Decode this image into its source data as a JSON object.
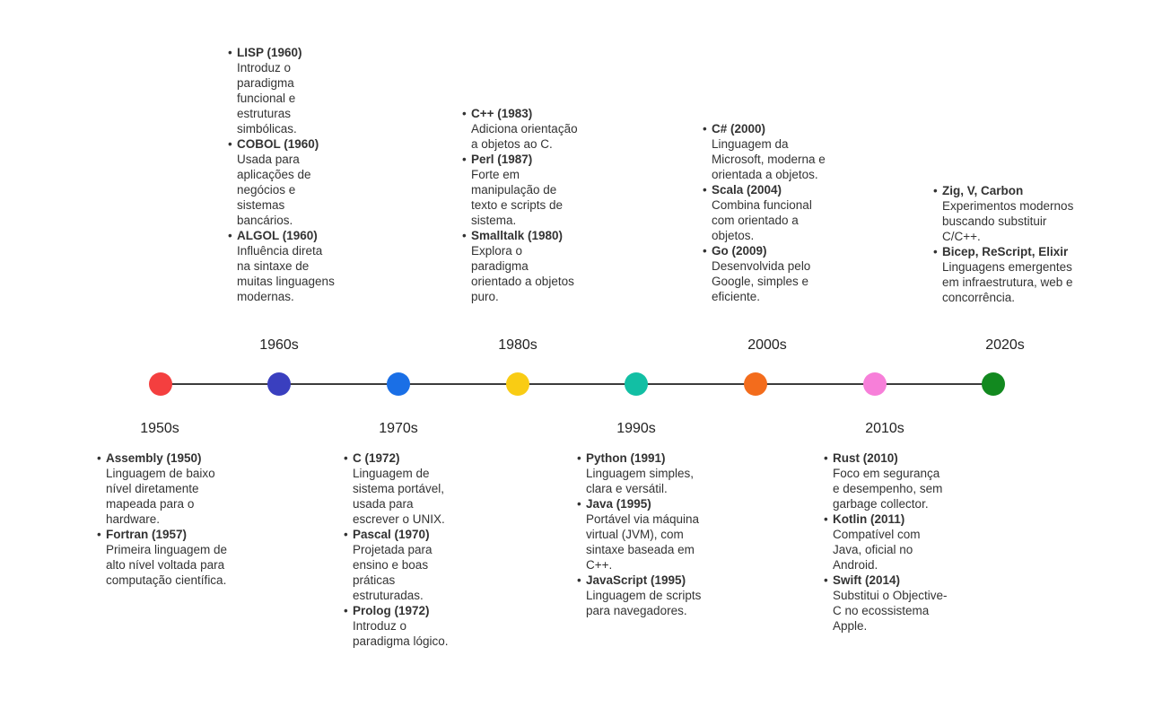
{
  "decades": [
    {
      "label": "1950s",
      "color": "#f43f3f",
      "events": [
        {
          "title": "Assembly (1950)",
          "desc": "Linguagem de baixo nível diretamente mapeada para o hardware."
        },
        {
          "title": "Fortran (1957)",
          "desc": "Primeira linguagem de alto nível voltada para computação científica."
        }
      ]
    },
    {
      "label": "1960s",
      "color": "#3a3fbf",
      "events": [
        {
          "title": "LISP (1960)",
          "desc": "Introduz o paradigma funcional e estruturas simbólicas."
        },
        {
          "title": "COBOL (1960)",
          "desc": "Usada para aplicações de negócios e sistemas bancários."
        },
        {
          "title": "ALGOL (1960)",
          "desc": "Influência direta na sintaxe de muitas linguagens modernas."
        }
      ]
    },
    {
      "label": "1970s",
      "color": "#1a6fe6",
      "events": [
        {
          "title": "C (1972)",
          "desc": "Linguagem de sistema portável, usada para escrever o UNIX."
        },
        {
          "title": "Pascal (1970)",
          "desc": "Projetada para ensino e boas práticas estruturadas."
        },
        {
          "title": "Prolog (1972)",
          "desc": "Introduz o paradigma lógico."
        }
      ]
    },
    {
      "label": "1980s",
      "color": "#f9cc14",
      "events": [
        {
          "title": "C++ (1983)",
          "desc": "Adiciona orientação a objetos ao C."
        },
        {
          "title": "Perl (1987)",
          "desc": "Forte em manipulação de texto e scripts de sistema."
        },
        {
          "title": "Smalltalk (1980)",
          "desc": "Explora o paradigma orientado a objetos puro."
        }
      ]
    },
    {
      "label": "1990s",
      "color": "#12bfa4",
      "events": [
        {
          "title": "Python (1991)",
          "desc": "Linguagem simples, clara e versátil."
        },
        {
          "title": "Java (1995)",
          "desc": "Portável via máquina virtual (JVM), com sintaxe baseada em C++."
        },
        {
          "title": "JavaScript (1995)",
          "desc": "Linguagem de scripts para navegadores."
        }
      ]
    },
    {
      "label": "2000s",
      "color": "#f36c1c",
      "events": [
        {
          "title": "C# (2000)",
          "desc": "Linguagem da Microsoft, moderna e orientada a objetos."
        },
        {
          "title": "Scala (2004)",
          "desc": "Combina funcional com orientado a objetos."
        },
        {
          "title": "Go (2009)",
          "desc": "Desenvolvida pelo Google, simples e eficiente."
        }
      ]
    },
    {
      "label": "2010s",
      "color": "#f77fd9",
      "events": [
        {
          "title": "Rust (2010)",
          "desc": "Foco em segurança e desempenho, sem garbage collector."
        },
        {
          "title": "Kotlin (2011)",
          "desc": "Compatível com Java, oficial no Android."
        },
        {
          "title": "Swift (2014)",
          "desc": "Substitui o Objective-C no ecossistema Apple."
        }
      ]
    },
    {
      "label": "2020s",
      "color": "#12891f",
      "events": [
        {
          "title": "Zig, V, Carbon",
          "desc": "Experimentos modernos buscando substituir C/C++."
        },
        {
          "title": "Bicep, ReScript, Elixir",
          "desc": "Linguagens emergentes em infraestrutura, web e concorrência."
        }
      ]
    }
  ]
}
